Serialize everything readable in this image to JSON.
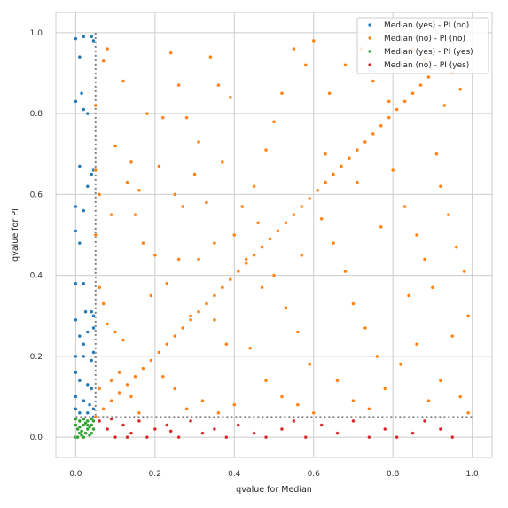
{
  "chart_data": {
    "type": "scatter",
    "title": "",
    "xlabel": "qvalue for Median",
    "ylabel": "qvalue for PI",
    "xlim": [
      -0.05,
      1.05
    ],
    "ylim": [
      -0.05,
      1.05
    ],
    "xticks": [
      "0.0",
      "0.2",
      "0.4",
      "0.6",
      "0.8",
      "1.0"
    ],
    "yticks": [
      "0.0",
      "0.2",
      "0.4",
      "0.6",
      "0.8",
      "1.0"
    ],
    "grid": true,
    "legend_position": "top-right",
    "threshold_lines": [
      {
        "axis": "x",
        "value": 0.05,
        "style": "dotted",
        "color": "#7f7f7f"
      },
      {
        "axis": "y",
        "value": 0.05,
        "style": "dotted",
        "color": "#7f7f7f"
      }
    ],
    "series": [
      {
        "name": "Median (yes) - PI (no)",
        "color": "#1f77b4",
        "points": [
          [
            0.0,
            0.985
          ],
          [
            0.02,
            0.99
          ],
          [
            0.04,
            0.99
          ],
          [
            0.045,
            0.98
          ],
          [
            0.01,
            0.94
          ],
          [
            0.0,
            0.83
          ],
          [
            0.02,
            0.81
          ],
          [
            0.03,
            0.8
          ],
          [
            0.015,
            0.85
          ],
          [
            0.01,
            0.67
          ],
          [
            0.03,
            0.62
          ],
          [
            0.04,
            0.65
          ],
          [
            0.045,
            0.66
          ],
          [
            0.0,
            0.57
          ],
          [
            0.02,
            0.56
          ],
          [
            0.0,
            0.51
          ],
          [
            0.01,
            0.48
          ],
          [
            0.0,
            0.38
          ],
          [
            0.02,
            0.38
          ],
          [
            0.025,
            0.31
          ],
          [
            0.04,
            0.31
          ],
          [
            0.045,
            0.3
          ],
          [
            0.0,
            0.29
          ],
          [
            0.01,
            0.25
          ],
          [
            0.03,
            0.26
          ],
          [
            0.045,
            0.27
          ],
          [
            0.02,
            0.23
          ],
          [
            0.0,
            0.2
          ],
          [
            0.02,
            0.2
          ],
          [
            0.04,
            0.19
          ],
          [
            0.045,
            0.21
          ],
          [
            0.0,
            0.16
          ],
          [
            0.01,
            0.14
          ],
          [
            0.03,
            0.13
          ],
          [
            0.04,
            0.12
          ],
          [
            0.0,
            0.1
          ],
          [
            0.02,
            0.09
          ],
          [
            0.035,
            0.08
          ],
          [
            0.0,
            0.07
          ],
          [
            0.045,
            0.07
          ],
          [
            0.01,
            0.06
          ],
          [
            0.03,
            0.06
          ],
          [
            0.045,
            0.05
          ]
        ]
      },
      {
        "name": "Median (no)  - PI (no)",
        "color": "#ff7f0e",
        "points": [
          [
            0.05,
            0.05
          ],
          [
            0.07,
            0.07
          ],
          [
            0.09,
            0.09
          ],
          [
            0.11,
            0.11
          ],
          [
            0.13,
            0.13
          ],
          [
            0.15,
            0.15
          ],
          [
            0.17,
            0.17
          ],
          [
            0.19,
            0.19
          ],
          [
            0.21,
            0.21
          ],
          [
            0.23,
            0.23
          ],
          [
            0.25,
            0.25
          ],
          [
            0.27,
            0.27
          ],
          [
            0.29,
            0.29
          ],
          [
            0.31,
            0.31
          ],
          [
            0.33,
            0.33
          ],
          [
            0.35,
            0.35
          ],
          [
            0.37,
            0.37
          ],
          [
            0.39,
            0.39
          ],
          [
            0.41,
            0.41
          ],
          [
            0.43,
            0.43
          ],
          [
            0.45,
            0.45
          ],
          [
            0.47,
            0.47
          ],
          [
            0.49,
            0.49
          ],
          [
            0.51,
            0.51
          ],
          [
            0.53,
            0.53
          ],
          [
            0.55,
            0.55
          ],
          [
            0.57,
            0.57
          ],
          [
            0.59,
            0.59
          ],
          [
            0.61,
            0.61
          ],
          [
            0.63,
            0.63
          ],
          [
            0.65,
            0.65
          ],
          [
            0.67,
            0.67
          ],
          [
            0.69,
            0.69
          ],
          [
            0.71,
            0.71
          ],
          [
            0.73,
            0.73
          ],
          [
            0.75,
            0.75
          ],
          [
            0.77,
            0.77
          ],
          [
            0.79,
            0.79
          ],
          [
            0.81,
            0.81
          ],
          [
            0.83,
            0.83
          ],
          [
            0.85,
            0.85
          ],
          [
            0.87,
            0.87
          ],
          [
            0.89,
            0.89
          ],
          [
            0.08,
            0.96
          ],
          [
            0.12,
            0.88
          ],
          [
            0.18,
            0.8
          ],
          [
            0.07,
            0.93
          ],
          [
            0.1,
            0.72
          ],
          [
            0.14,
            0.68
          ],
          [
            0.06,
            0.6
          ],
          [
            0.09,
            0.55
          ],
          [
            0.13,
            0.63
          ],
          [
            0.16,
            0.61
          ],
          [
            0.06,
            0.37
          ],
          [
            0.07,
            0.33
          ],
          [
            0.08,
            0.28
          ],
          [
            0.1,
            0.26
          ],
          [
            0.12,
            0.24
          ],
          [
            0.06,
            0.12
          ],
          [
            0.09,
            0.14
          ],
          [
            0.11,
            0.16
          ],
          [
            0.14,
            0.1
          ],
          [
            0.16,
            0.06
          ],
          [
            0.2,
            0.45
          ],
          [
            0.22,
            0.79
          ],
          [
            0.24,
            0.95
          ],
          [
            0.26,
            0.87
          ],
          [
            0.28,
            0.79
          ],
          [
            0.31,
            0.73
          ],
          [
            0.34,
            0.94
          ],
          [
            0.36,
            0.87
          ],
          [
            0.39,
            0.84
          ],
          [
            0.21,
            0.67
          ],
          [
            0.25,
            0.6
          ],
          [
            0.27,
            0.57
          ],
          [
            0.3,
            0.65
          ],
          [
            0.33,
            0.58
          ],
          [
            0.37,
            0.68
          ],
          [
            0.23,
            0.38
          ],
          [
            0.26,
            0.44
          ],
          [
            0.29,
            0.3
          ],
          [
            0.35,
            0.29
          ],
          [
            0.38,
            0.23
          ],
          [
            0.22,
            0.15
          ],
          [
            0.25,
            0.12
          ],
          [
            0.28,
            0.07
          ],
          [
            0.32,
            0.09
          ],
          [
            0.36,
            0.06
          ],
          [
            0.4,
            0.08
          ],
          [
            0.42,
            0.57
          ],
          [
            0.45,
            0.62
          ],
          [
            0.48,
            0.71
          ],
          [
            0.5,
            0.78
          ],
          [
            0.52,
            0.85
          ],
          [
            0.55,
            0.96
          ],
          [
            0.58,
            0.92
          ],
          [
            0.6,
            0.98
          ],
          [
            0.43,
            0.44
          ],
          [
            0.47,
            0.37
          ],
          [
            0.5,
            0.4
          ],
          [
            0.53,
            0.32
          ],
          [
            0.56,
            0.26
          ],
          [
            0.59,
            0.18
          ],
          [
            0.44,
            0.22
          ],
          [
            0.48,
            0.14
          ],
          [
            0.52,
            0.1
          ],
          [
            0.56,
            0.08
          ],
          [
            0.6,
            0.06
          ],
          [
            0.62,
            0.54
          ],
          [
            0.65,
            0.48
          ],
          [
            0.68,
            0.41
          ],
          [
            0.7,
            0.33
          ],
          [
            0.73,
            0.27
          ],
          [
            0.76,
            0.2
          ],
          [
            0.64,
            0.85
          ],
          [
            0.68,
            0.92
          ],
          [
            0.72,
            0.96
          ],
          [
            0.75,
            0.88
          ],
          [
            0.79,
            0.83
          ],
          [
            0.66,
            0.14
          ],
          [
            0.7,
            0.09
          ],
          [
            0.74,
            0.07
          ],
          [
            0.78,
            0.12
          ],
          [
            0.8,
            0.66
          ],
          [
            0.83,
            0.57
          ],
          [
            0.86,
            0.5
          ],
          [
            0.88,
            0.44
          ],
          [
            0.9,
            0.37
          ],
          [
            0.82,
            0.18
          ],
          [
            0.86,
            0.23
          ],
          [
            0.89,
            0.09
          ],
          [
            0.92,
            0.62
          ],
          [
            0.94,
            0.55
          ],
          [
            0.96,
            0.47
          ],
          [
            0.98,
            0.41
          ],
          [
            0.93,
            0.82
          ],
          [
            0.95,
            0.9
          ],
          [
            0.97,
            0.86
          ],
          [
            0.99,
            0.3
          ],
          [
            0.95,
            0.25
          ],
          [
            0.92,
            0.14
          ],
          [
            0.97,
            0.1
          ],
          [
            0.99,
            0.06
          ],
          [
            0.85,
            0.96
          ],
          [
            0.88,
            0.93
          ],
          [
            0.91,
            0.7
          ],
          [
            0.84,
            0.35
          ],
          [
            0.77,
            0.52
          ],
          [
            0.71,
            0.63
          ],
          [
            0.63,
            0.7
          ],
          [
            0.57,
            0.45
          ],
          [
            0.46,
            0.53
          ],
          [
            0.4,
            0.5
          ],
          [
            0.35,
            0.48
          ],
          [
            0.31,
            0.44
          ],
          [
            0.19,
            0.35
          ],
          [
            0.17,
            0.48
          ],
          [
            0.15,
            0.55
          ],
          [
            0.05,
            0.5
          ],
          [
            0.05,
            0.66
          ],
          [
            0.05,
            0.82
          ]
        ]
      },
      {
        "name": "Median (yes) - PI (yes)",
        "color": "#2ca02c",
        "points": [
          [
            0.0,
            0.0
          ],
          [
            0.01,
            0.01
          ],
          [
            0.02,
            0.0
          ],
          [
            0.03,
            0.02
          ],
          [
            0.04,
            0.01
          ],
          [
            0.0,
            0.03
          ],
          [
            0.01,
            0.04
          ],
          [
            0.02,
            0.03
          ],
          [
            0.03,
            0.04
          ],
          [
            0.04,
            0.03
          ],
          [
            0.005,
            0.02
          ],
          [
            0.015,
            0.015
          ],
          [
            0.025,
            0.01
          ],
          [
            0.035,
            0.005
          ],
          [
            0.045,
            0.02
          ],
          [
            0.0,
            0.045
          ],
          [
            0.02,
            0.045
          ],
          [
            0.04,
            0.045
          ],
          [
            0.01,
            0.025
          ],
          [
            0.03,
            0.03
          ],
          [
            0.045,
            0.04
          ],
          [
            0.005,
            0.0
          ],
          [
            0.025,
            0.035
          ],
          [
            0.035,
            0.025
          ],
          [
            0.015,
            0.005
          ]
        ]
      },
      {
        "name": "Median (no)  - PI (yes)",
        "color": "#d62728",
        "points": [
          [
            0.06,
            0.04
          ],
          [
            0.08,
            0.02
          ],
          [
            0.1,
            0.0
          ],
          [
            0.12,
            0.03
          ],
          [
            0.14,
            0.01
          ],
          [
            0.16,
            0.04
          ],
          [
            0.18,
            0.0
          ],
          [
            0.2,
            0.02
          ],
          [
            0.23,
            0.03
          ],
          [
            0.26,
            0.0
          ],
          [
            0.29,
            0.04
          ],
          [
            0.32,
            0.01
          ],
          [
            0.35,
            0.02
          ],
          [
            0.38,
            0.0
          ],
          [
            0.41,
            0.03
          ],
          [
            0.45,
            0.01
          ],
          [
            0.48,
            0.0
          ],
          [
            0.52,
            0.02
          ],
          [
            0.55,
            0.04
          ],
          [
            0.58,
            0.0
          ],
          [
            0.62,
            0.03
          ],
          [
            0.66,
            0.01
          ],
          [
            0.7,
            0.04
          ],
          [
            0.74,
            0.0
          ],
          [
            0.78,
            0.02
          ],
          [
            0.81,
            0.0
          ],
          [
            0.85,
            0.01
          ],
          [
            0.88,
            0.04
          ],
          [
            0.92,
            0.02
          ],
          [
            0.95,
            0.0
          ],
          [
            0.09,
            0.045
          ],
          [
            0.13,
            0.0
          ],
          [
            0.24,
            0.015
          ]
        ]
      }
    ]
  }
}
